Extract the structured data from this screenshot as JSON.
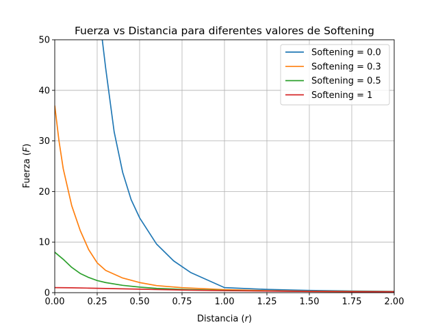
{
  "chart_data": {
    "type": "line",
    "title": "Fuerza vs Distancia para diferentes valores de Softening",
    "xlabel": {
      "prefix": "Distancia (",
      "var": "r",
      "suffix": ")"
    },
    "ylabel": {
      "prefix": "Fuerza (",
      "var": "F",
      "suffix": ")"
    },
    "xlim": [
      0,
      2
    ],
    "ylim": [
      0,
      50
    ],
    "xticks": [
      0,
      0.25,
      0.5,
      0.75,
      1,
      1.25,
      1.5,
      1.75,
      2
    ],
    "xtick_labels": [
      "0.00",
      "0.25",
      "0.50",
      "0.75",
      "1.00",
      "1.25",
      "1.50",
      "1.75",
      "2.00"
    ],
    "yticks": [
      0,
      10,
      20,
      30,
      40,
      50
    ],
    "ytick_labels": [
      "0",
      "10",
      "20",
      "30",
      "40",
      "50"
    ],
    "grid": true,
    "legend_position": "top-right",
    "series": [
      {
        "name": "Softening = 0.0",
        "color": "#1f77b4",
        "x": [
          0.28,
          0.3,
          0.35,
          0.4,
          0.45,
          0.5,
          0.6,
          0.7,
          0.8,
          1.0,
          1.25,
          1.5,
          1.75,
          2.0
        ],
        "y": [
          50.0,
          44.4,
          31.8,
          23.8,
          18.4,
          14.8,
          9.6,
          6.3,
          4.0,
          1.0,
          0.64,
          0.44,
          0.33,
          0.25
        ]
      },
      {
        "name": "Softening = 0.3",
        "color": "#ff7f0e",
        "x": [
          0.0,
          0.025,
          0.05,
          0.1,
          0.15,
          0.2,
          0.25,
          0.3,
          0.4,
          0.5,
          0.6,
          0.75,
          1.0,
          1.25,
          1.5,
          1.75,
          2.0
        ],
        "y": [
          37.0,
          30.0,
          24.5,
          17.2,
          12.3,
          8.5,
          5.9,
          4.4,
          2.9,
          2.0,
          1.4,
          0.99,
          0.6,
          0.4,
          0.3,
          0.25,
          0.2
        ]
      },
      {
        "name": "Softening = 0.5",
        "color": "#2ca02c",
        "x": [
          0.0,
          0.05,
          0.1,
          0.15,
          0.2,
          0.25,
          0.3,
          0.4,
          0.5,
          0.6,
          0.75,
          1.0,
          1.25,
          1.5,
          1.75,
          2.0
        ],
        "y": [
          8.0,
          6.6,
          5.0,
          3.8,
          3.0,
          2.4,
          2.0,
          1.45,
          1.1,
          0.85,
          0.65,
          0.45,
          0.33,
          0.25,
          0.2,
          0.15
        ]
      },
      {
        "name": "Softening = 1",
        "color": "#d62728",
        "x": [
          0.0,
          0.1,
          0.2,
          0.3,
          0.4,
          0.5,
          0.6,
          0.75,
          1.0,
          1.25,
          1.5,
          1.75,
          2.0
        ],
        "y": [
          1.0,
          0.97,
          0.9,
          0.83,
          0.76,
          0.69,
          0.62,
          0.53,
          0.4,
          0.32,
          0.24,
          0.19,
          0.15
        ]
      }
    ]
  }
}
